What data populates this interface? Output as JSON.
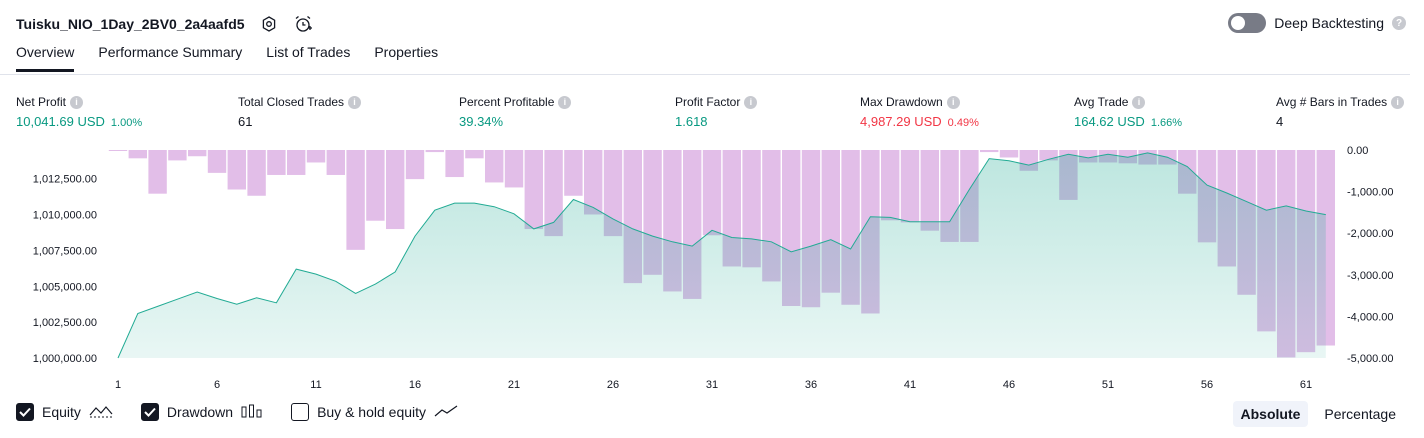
{
  "header": {
    "strategy_name": "Tuisku_NIO_1Day_2BV0_2a4aafd5",
    "icons": [
      "settings-icon",
      "add-alert-icon"
    ],
    "deep_backtesting_label": "Deep Backtesting",
    "deep_backtesting_enabled": false
  },
  "tabs": [
    {
      "label": "Overview",
      "active": true
    },
    {
      "label": "Performance Summary",
      "active": false
    },
    {
      "label": "List of Trades",
      "active": false
    },
    {
      "label": "Properties",
      "active": false
    }
  ],
  "metrics": [
    {
      "label": "Net Profit",
      "value": "10,041.69 USD",
      "pct": "1.00%",
      "color": "#089981"
    },
    {
      "label": "Total Closed Trades",
      "value": "61",
      "pct": "",
      "color": "#131722"
    },
    {
      "label": "Percent Profitable",
      "value": "39.34%",
      "pct": "",
      "color": "#089981"
    },
    {
      "label": "Profit Factor",
      "value": "1.618",
      "pct": "",
      "color": "#089981"
    },
    {
      "label": "Max Drawdown",
      "value": "4,987.29 USD",
      "pct": "0.49%",
      "color": "#f23645"
    },
    {
      "label": "Avg Trade",
      "value": "164.62 USD",
      "pct": "1.66%",
      "color": "#089981"
    },
    {
      "label": "Avg # Bars in Trades",
      "value": "4",
      "pct": "",
      "color": "#131722"
    }
  ],
  "chart_data": {
    "type": "area",
    "x": [
      1,
      2,
      3,
      4,
      5,
      6,
      7,
      8,
      9,
      10,
      11,
      12,
      13,
      14,
      15,
      16,
      17,
      18,
      19,
      20,
      21,
      22,
      23,
      24,
      25,
      26,
      27,
      28,
      29,
      30,
      31,
      32,
      33,
      34,
      35,
      36,
      37,
      38,
      39,
      40,
      41,
      42,
      43,
      44,
      45,
      46,
      47,
      48,
      49,
      50,
      51,
      52,
      53,
      54,
      55,
      56,
      57,
      58,
      59,
      60,
      61,
      62
    ],
    "x_ticks": [
      1,
      6,
      11,
      16,
      21,
      26,
      31,
      36,
      41,
      46,
      51,
      56,
      61
    ],
    "series": [
      {
        "name": "Equity",
        "axis": "left",
        "color": "#22ab94",
        "values": [
          1000000,
          1003100,
          1003600,
          1004100,
          1004600,
          1004150,
          1003750,
          1004200,
          1003850,
          1006200,
          1005850,
          1005350,
          1004500,
          1005150,
          1006000,
          1008500,
          1010300,
          1010800,
          1010800,
          1010550,
          1010050,
          1009000,
          1009450,
          1011050,
          1010500,
          1009700,
          1009000,
          1008500,
          1008100,
          1007800,
          1008900,
          1008400,
          1008300,
          1008100,
          1007400,
          1007800,
          1008250,
          1007600,
          1009850,
          1009800,
          1009500,
          1009500,
          1009500,
          1011750,
          1013900,
          1013750,
          1013450,
          1013850,
          1014200,
          1013950,
          1014200,
          1014000,
          1014300,
          1014000,
          1013350,
          1012050,
          1011500,
          1010900,
          1010300,
          1010600,
          1010250,
          1010000
        ]
      },
      {
        "name": "Drawdown",
        "axis": "right",
        "color": "#ce93d8",
        "values": [
          0,
          -200,
          -1050,
          -250,
          -150,
          -550,
          -950,
          -1100,
          -600,
          -600,
          -300,
          -600,
          -2400,
          -1700,
          -1900,
          -700,
          -50,
          -650,
          -200,
          -780,
          -900,
          -1900,
          -2070,
          -1100,
          -1550,
          -2070,
          -3200,
          -3000,
          -3400,
          -3580,
          -2050,
          -2800,
          -2820,
          -3160,
          -3750,
          -3780,
          -3430,
          -3720,
          -3930,
          -1690,
          -1740,
          -1940,
          -2210,
          -2210,
          -50,
          -180,
          -500,
          -250,
          -1200,
          -300,
          -300,
          -320,
          -350,
          -350,
          -1050,
          -2220,
          -2800,
          -3480,
          -4360,
          -4987,
          -4860,
          -4700
        ]
      }
    ],
    "y_left_ticks": [
      "1,000,000.00",
      "1,002,500.00",
      "1,005,000.00",
      "1,007,500.00",
      "1,010,000.00",
      "1,012,500.00"
    ],
    "y_left_range": [
      1000000,
      1014500
    ],
    "y_right_ticks": [
      "0.00",
      "-1,000.00",
      "-2,000.00",
      "-3,000.00",
      "-4,000.00",
      "-5,000.00"
    ],
    "y_right_range": [
      -5000,
      0
    ]
  },
  "legend": [
    {
      "label": "Equity",
      "checked": true,
      "icon": "equity-line-icon"
    },
    {
      "label": "Drawdown",
      "checked": true,
      "icon": "drawdown-bars-icon"
    },
    {
      "label": "Buy & hold equity",
      "checked": false,
      "icon": "buy-hold-line-icon"
    }
  ],
  "mode": {
    "absolute_label": "Absolute",
    "percentage_label": "Percentage",
    "active": "Absolute"
  }
}
